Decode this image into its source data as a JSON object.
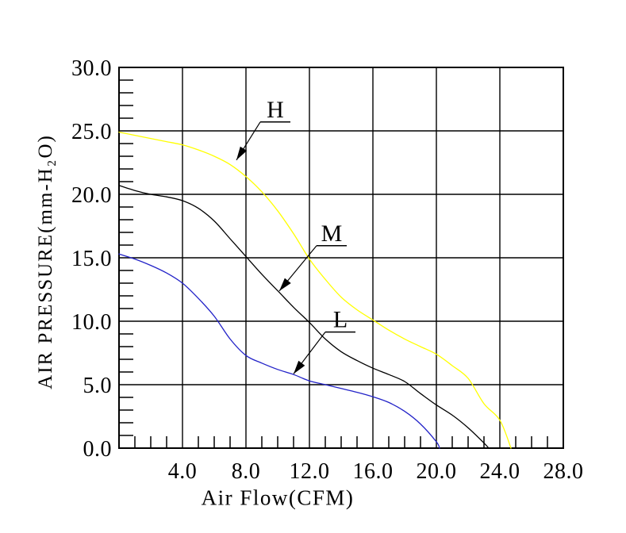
{
  "chart_data": {
    "type": "line",
    "title": "",
    "xlabel": "Air Flow(CFM)",
    "ylabel": "AIR PRESSURE(mm-H₂O)",
    "xlim": [
      0,
      28
    ],
    "ylim": [
      0,
      30
    ],
    "x_tick_values": [
      4,
      8,
      12,
      16,
      20,
      24,
      28
    ],
    "x_tick_labels": [
      "4.0",
      "8.0",
      "12.0",
      "16.0",
      "20.0",
      "24.0",
      "28.0"
    ],
    "y_tick_values": [
      0,
      5,
      10,
      15,
      20,
      25,
      30
    ],
    "y_tick_labels": [
      "0.0",
      "5.0",
      "10.0",
      "15.0",
      "20.0",
      "25.0",
      "30.0"
    ],
    "x_minor_step": 1,
    "y_minor_step": 1,
    "grid": "major",
    "frame_color": "#000000",
    "grid_color": "#000000",
    "curve_label_color": "#1a1a5e",
    "series": [
      {
        "name": "H",
        "color": "#ffff00",
        "points": [
          [
            0,
            24.9
          ],
          [
            1,
            24.65
          ],
          [
            2,
            24.4
          ],
          [
            3,
            24.15
          ],
          [
            4,
            23.9
          ],
          [
            5,
            23.5
          ],
          [
            6,
            23.0
          ],
          [
            7,
            22.35
          ],
          [
            8,
            21.4
          ],
          [
            9,
            20.2
          ],
          [
            10,
            18.7
          ],
          [
            11,
            16.9
          ],
          [
            12,
            14.9
          ],
          [
            13,
            13.3
          ],
          [
            14,
            11.9
          ],
          [
            15,
            10.9
          ],
          [
            16,
            10.1
          ],
          [
            17,
            9.3
          ],
          [
            18,
            8.6
          ],
          [
            19,
            8.0
          ],
          [
            20,
            7.4
          ],
          [
            21,
            6.5
          ],
          [
            22,
            5.5
          ],
          [
            23,
            3.5
          ],
          [
            24,
            2.2
          ],
          [
            24.7,
            0.0
          ]
        ]
      },
      {
        "name": "M",
        "color": "#000000",
        "points": [
          [
            0,
            20.7
          ],
          [
            1,
            20.3
          ],
          [
            2,
            20.0
          ],
          [
            3,
            19.8
          ],
          [
            4,
            19.5
          ],
          [
            5,
            18.9
          ],
          [
            6,
            17.9
          ],
          [
            7,
            16.5
          ],
          [
            8,
            15.1
          ],
          [
            9,
            13.7
          ],
          [
            10,
            12.4
          ],
          [
            11,
            11.1
          ],
          [
            12,
            9.9
          ],
          [
            13,
            8.6
          ],
          [
            14,
            7.6
          ],
          [
            15,
            6.9
          ],
          [
            16,
            6.3
          ],
          [
            17,
            5.8
          ],
          [
            18,
            5.25
          ],
          [
            19,
            4.3
          ],
          [
            20,
            3.4
          ],
          [
            21,
            2.6
          ],
          [
            22,
            1.6
          ],
          [
            23,
            0.4
          ],
          [
            23.3,
            0.0
          ]
        ]
      },
      {
        "name": "L",
        "color": "#2222c8",
        "points": [
          [
            0,
            15.3
          ],
          [
            1,
            14.9
          ],
          [
            2,
            14.4
          ],
          [
            3,
            13.8
          ],
          [
            4,
            13.0
          ],
          [
            5,
            11.8
          ],
          [
            6,
            10.4
          ],
          [
            7,
            8.6
          ],
          [
            8,
            7.3
          ],
          [
            9,
            6.7
          ],
          [
            10,
            6.2
          ],
          [
            11,
            5.8
          ],
          [
            12,
            5.3
          ],
          [
            13,
            5.0
          ],
          [
            14,
            4.7
          ],
          [
            15,
            4.4
          ],
          [
            16,
            4.05
          ],
          [
            17,
            3.6
          ],
          [
            18,
            2.9
          ],
          [
            19,
            1.9
          ],
          [
            20,
            0.5
          ],
          [
            20.2,
            0.0
          ]
        ]
      }
    ],
    "annotations": [
      {
        "label": "H",
        "label_x": 9.85,
        "label_y": 26.7,
        "arrow_x": 7.4,
        "arrow_y": 22.7
      },
      {
        "label": "M",
        "label_x": 13.4,
        "label_y": 16.95,
        "arrow_x": 10.1,
        "arrow_y": 12.38
      },
      {
        "label": "L",
        "label_x": 13.95,
        "label_y": 10.15,
        "arrow_x": 11.0,
        "arrow_y": 5.85
      }
    ]
  }
}
